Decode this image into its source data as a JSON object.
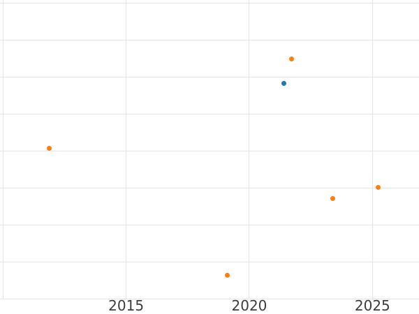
{
  "figure": {
    "background": "#ffffff"
  },
  "chart_data": {
    "type": "scatter",
    "title": "",
    "xlabel": "",
    "ylabel": "",
    "grid": true,
    "legend": "none",
    "x_tick_labels": [
      "2015",
      "2020",
      "2025"
    ],
    "x_tick_values": [
      2015,
      2020,
      2025
    ],
    "x_gridlines": [
      2010,
      2015,
      2020,
      2025
    ],
    "y_gridlines": [
      0,
      1,
      2,
      3,
      4,
      5,
      6,
      7,
      8
    ],
    "xlim": [
      2009.88,
      2026.89
    ],
    "ylim": [
      0,
      8.08
    ],
    "series": [
      {
        "name": "orange-series",
        "color": "#ff7f0e",
        "marker_size_px": 7,
        "points": [
          {
            "x": 2011.87,
            "y": 4.07
          },
          {
            "x": 2019.11,
            "y": 0.64
          },
          {
            "x": 2021.72,
            "y": 6.48
          },
          {
            "x": 2023.38,
            "y": 2.71
          },
          {
            "x": 2025.24,
            "y": 3.02
          }
        ]
      },
      {
        "name": "blue-series",
        "color": "#1f77b4",
        "marker_size_px": 7,
        "points": [
          {
            "x": 2021.41,
            "y": 5.83
          }
        ]
      }
    ],
    "style": {
      "grid_color": "#e5e5e5",
      "tick_label_color": "#3d3d3d",
      "tick_font_size_px": 20
    }
  }
}
